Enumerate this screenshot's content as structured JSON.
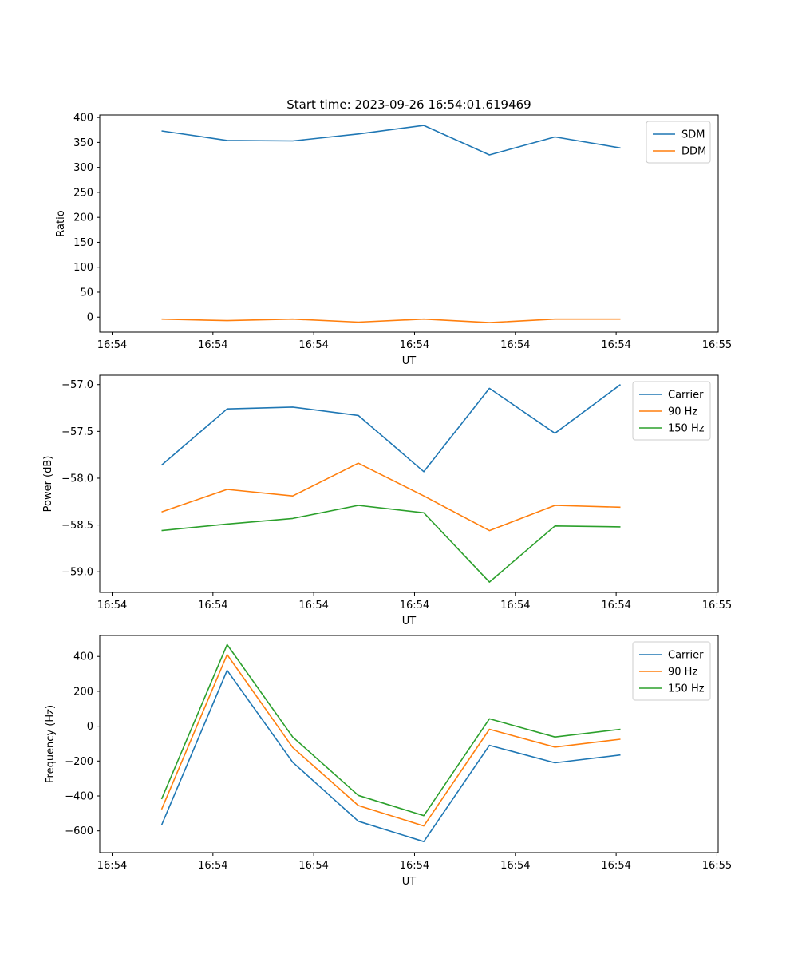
{
  "chart_data": [
    {
      "type": "line",
      "title": "Start time: 2023-09-26 16:54:01.619469",
      "xlabel": "UT",
      "ylabel": "Ratio",
      "xtick_labels": [
        "16:54",
        "16:54",
        "16:54",
        "16:54",
        "16:54",
        "16:54",
        "16:55"
      ],
      "ylim": [
        -30,
        405
      ],
      "yticks": [
        0,
        50,
        100,
        150,
        200,
        250,
        300,
        350,
        400
      ],
      "ytick_labels": [
        "0",
        "50",
        "100",
        "150",
        "200",
        "250",
        "300",
        "350",
        "400"
      ],
      "legend_position": "top-right",
      "series": [
        {
          "name": "SDM",
          "color": "#1f77b4",
          "values": [
            373,
            354,
            353,
            367,
            384,
            325,
            361,
            339
          ]
        },
        {
          "name": "DDM",
          "color": "#ff7f0e",
          "values": [
            -4,
            -7,
            -4,
            -10,
            -4,
            -11,
            -4,
            -4
          ]
        }
      ]
    },
    {
      "type": "line",
      "title": "",
      "xlabel": "UT",
      "ylabel": "Power (dB)",
      "xtick_labels": [
        "16:54",
        "16:54",
        "16:54",
        "16:54",
        "16:54",
        "16:54",
        "16:55"
      ],
      "ylim": [
        -59.22,
        -56.9
      ],
      "yticks": [
        -59.0,
        -58.5,
        -58.0,
        -57.5,
        -57.0
      ],
      "ytick_labels": [
        "−59.0",
        "−58.5",
        "−58.0",
        "−57.5",
        "−57.0"
      ],
      "legend_position": "top-right",
      "series": [
        {
          "name": "Carrier",
          "color": "#1f77b4",
          "values": [
            -57.86,
            -57.26,
            -57.24,
            -57.33,
            -57.93,
            -57.04,
            -57.52,
            -57.0
          ]
        },
        {
          "name": "90 Hz",
          "color": "#ff7f0e",
          "values": [
            -58.36,
            -58.12,
            -58.19,
            -57.84,
            -58.19,
            -58.56,
            -58.29,
            -58.31
          ]
        },
        {
          "name": "150 Hz",
          "color": "#2ca02c",
          "values": [
            -58.56,
            -58.49,
            -58.43,
            -58.29,
            -58.37,
            -59.11,
            -58.51,
            -58.52
          ]
        }
      ]
    },
    {
      "type": "line",
      "title": "",
      "xlabel": "UT",
      "ylabel": "Frequency (Hz)",
      "xtick_labels": [
        "16:54",
        "16:54",
        "16:54",
        "16:54",
        "16:54",
        "16:54",
        "16:55"
      ],
      "ylim": [
        -725,
        520
      ],
      "yticks": [
        -600,
        -400,
        -200,
        0,
        200,
        400
      ],
      "ytick_labels": [
        "−600",
        "−400",
        "−200",
        "0",
        "200",
        "400"
      ],
      "legend_position": "top-right",
      "series": [
        {
          "name": "Carrier",
          "color": "#1f77b4",
          "values": [
            -567,
            320,
            -207,
            -545,
            -662,
            -110,
            -210,
            -165
          ]
        },
        {
          "name": "90 Hz",
          "color": "#ff7f0e",
          "values": [
            -477,
            410,
            -122,
            -455,
            -572,
            -18,
            -120,
            -75
          ]
        },
        {
          "name": "150 Hz",
          "color": "#2ca02c",
          "values": [
            -418,
            468,
            -62,
            -397,
            -513,
            42,
            -62,
            -18
          ]
        }
      ]
    }
  ]
}
